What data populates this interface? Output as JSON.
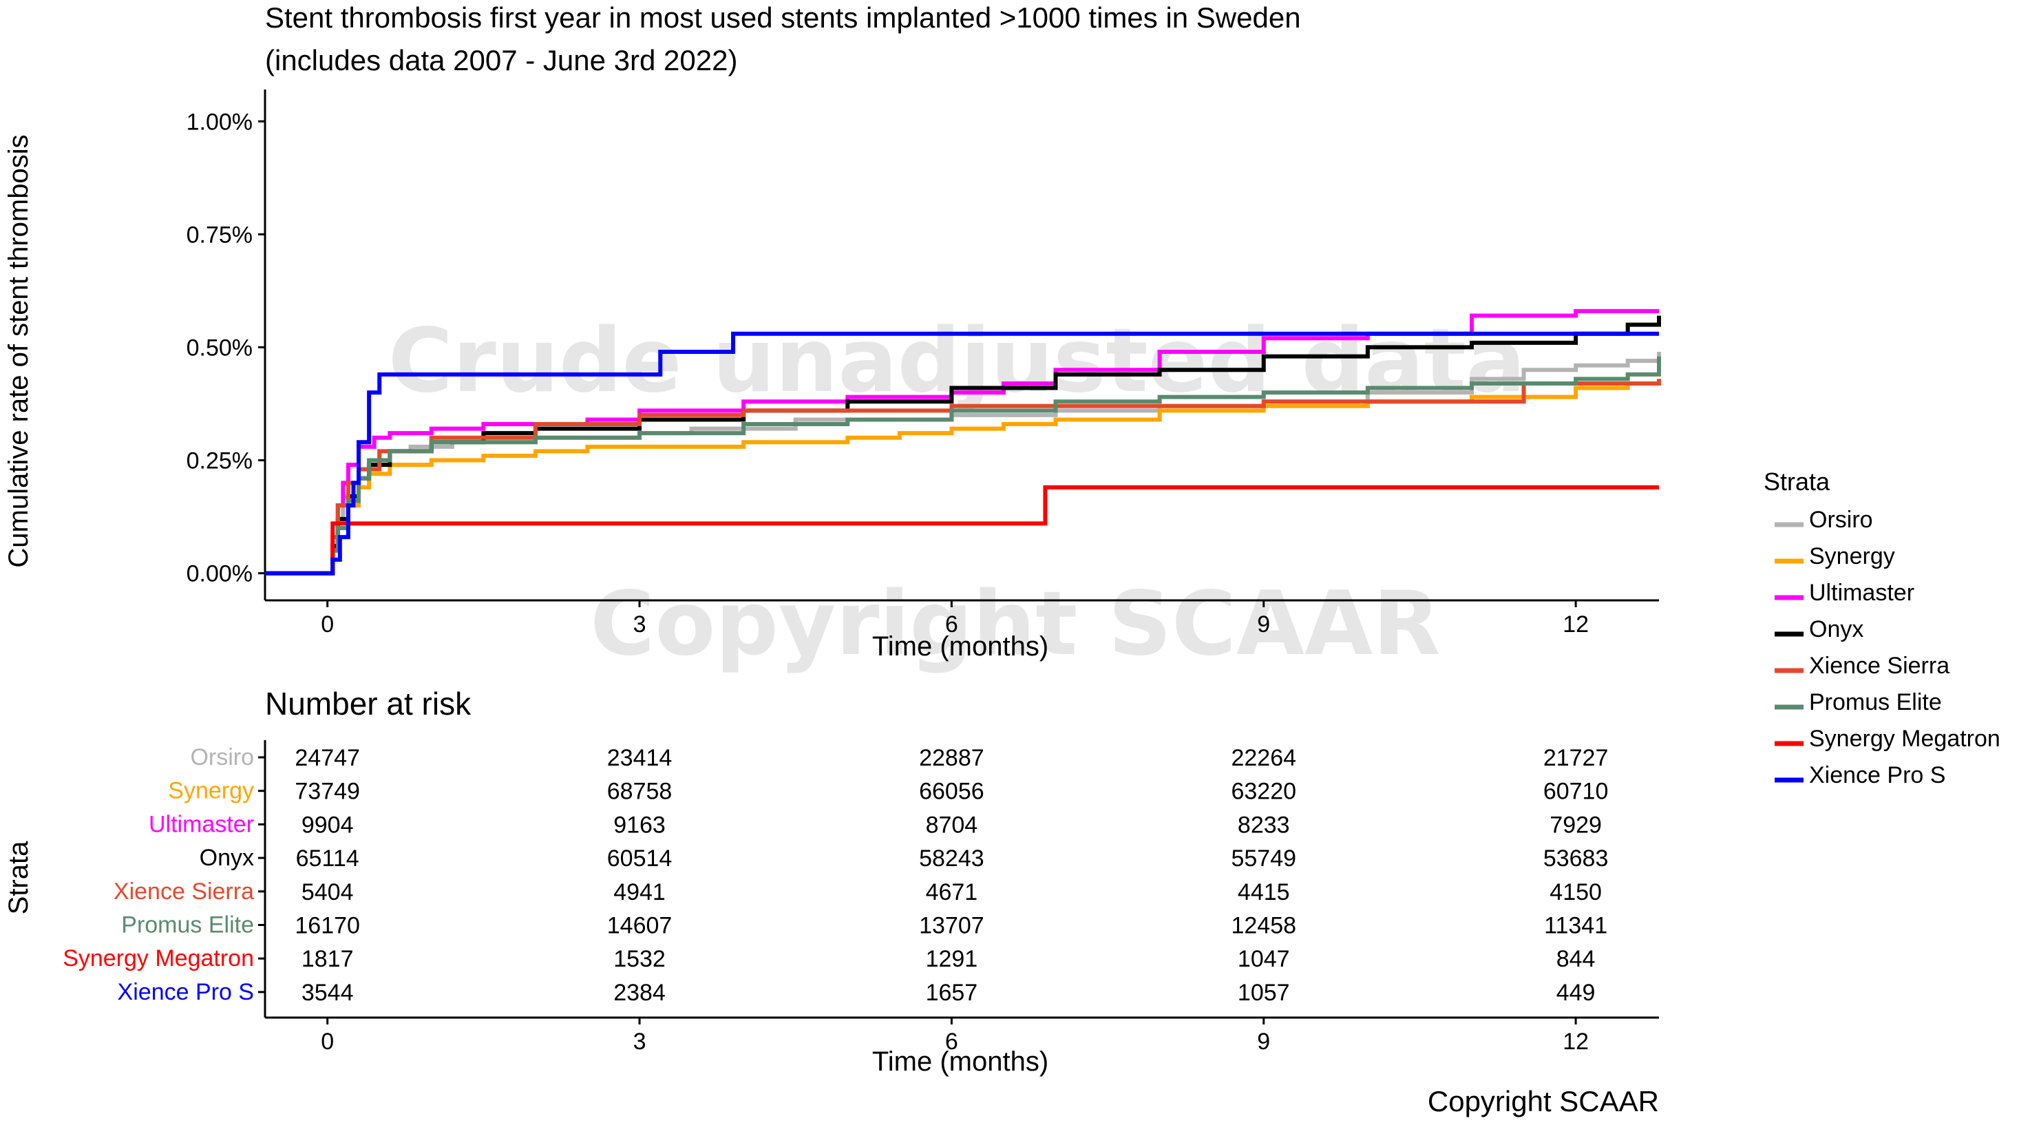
{
  "chart_data": {
    "type": "line",
    "title": "Stent thrombosis first year in most used stents implanted >1000 times in Sweden",
    "subtitle": "(includes data 2007 - June 3rd 2022)",
    "xlabel": "Time (months)",
    "ylabel": "Cumulative rate of stent thrombosis",
    "xlim": [
      -0.6,
      12.8
    ],
    "ylim": [
      -0.06,
      1.04
    ],
    "x_ticks": [
      0,
      3,
      6,
      9,
      12
    ],
    "x_tick_labels": [
      "0",
      "3",
      "6",
      "9",
      "12"
    ],
    "y_ticks": [
      0,
      0.25,
      0.5,
      0.75,
      1.0
    ],
    "y_tick_labels": [
      "0.00%",
      "0.25%",
      "0.50%",
      "0.75%",
      "1.00%"
    ],
    "grid": false,
    "legend_title": "Strata",
    "legend_position": "right",
    "watermarks": [
      "Crude unadjusted data",
      "Copyright SCAAR"
    ],
    "series": [
      {
        "name": "Orsiro",
        "color": "#b3b3b3",
        "x": [
          -0.6,
          0,
          0.05,
          0.1,
          0.15,
          0.2,
          0.3,
          0.4,
          0.5,
          0.8,
          1.2,
          2,
          3,
          3.5,
          4.5,
          6,
          7,
          8,
          9,
          10,
          11,
          11.5,
          12,
          12.5,
          12.8
        ],
        "y": [
          0,
          0,
          0.05,
          0.12,
          0.17,
          0.2,
          0.23,
          0.25,
          0.27,
          0.28,
          0.29,
          0.3,
          0.31,
          0.32,
          0.34,
          0.35,
          0.36,
          0.37,
          0.38,
          0.4,
          0.43,
          0.45,
          0.46,
          0.47,
          0.49
        ]
      },
      {
        "name": "Synergy",
        "color": "#ffa500",
        "x": [
          -0.6,
          0,
          0.05,
          0.1,
          0.2,
          0.3,
          0.4,
          0.6,
          1,
          1.5,
          2,
          2.5,
          3,
          4,
          5,
          5.5,
          6,
          6.5,
          7,
          8,
          9,
          10,
          11,
          12,
          12.5,
          12.8
        ],
        "y": [
          0,
          0,
          0.05,
          0.1,
          0.15,
          0.19,
          0.22,
          0.24,
          0.25,
          0.26,
          0.27,
          0.28,
          0.28,
          0.29,
          0.3,
          0.31,
          0.32,
          0.33,
          0.34,
          0.36,
          0.37,
          0.38,
          0.39,
          0.41,
          0.42,
          0.43
        ]
      },
      {
        "name": "Ultimaster",
        "color": "#ff00ff",
        "x": [
          -0.6,
          0,
          0.05,
          0.1,
          0.15,
          0.2,
          0.3,
          0.45,
          0.6,
          1,
          1.5,
          2.5,
          3,
          4,
          5,
          6,
          6.5,
          7,
          8,
          9,
          10,
          11,
          12,
          12.8
        ],
        "y": [
          0,
          0,
          0.06,
          0.15,
          0.2,
          0.24,
          0.28,
          0.3,
          0.31,
          0.32,
          0.33,
          0.34,
          0.36,
          0.38,
          0.39,
          0.4,
          0.42,
          0.45,
          0.49,
          0.52,
          0.53,
          0.57,
          0.58,
          0.58
        ]
      },
      {
        "name": "Onyx",
        "color": "#000000",
        "x": [
          -0.6,
          0,
          0.05,
          0.1,
          0.2,
          0.3,
          0.4,
          0.6,
          1,
          1.5,
          2,
          3,
          4,
          5,
          6,
          7,
          8,
          9,
          10,
          11,
          12,
          12.5,
          12.8
        ],
        "y": [
          0,
          0,
          0.06,
          0.12,
          0.17,
          0.21,
          0.24,
          0.27,
          0.29,
          0.31,
          0.32,
          0.34,
          0.36,
          0.38,
          0.41,
          0.44,
          0.45,
          0.48,
          0.5,
          0.51,
          0.53,
          0.55,
          0.57
        ]
      },
      {
        "name": "Xience Sierra",
        "color": "#e3492b",
        "x": [
          -0.6,
          0,
          0.05,
          0.1,
          0.2,
          0.3,
          0.5,
          1,
          2,
          3,
          4,
          6,
          7,
          8,
          9,
          10,
          11,
          11.5,
          12,
          12.8
        ],
        "y": [
          0,
          0,
          0.08,
          0.15,
          0.2,
          0.23,
          0.27,
          0.3,
          0.33,
          0.35,
          0.36,
          0.37,
          0.37,
          0.37,
          0.38,
          0.38,
          0.38,
          0.42,
          0.42,
          0.43
        ]
      },
      {
        "name": "Promus Elite",
        "color": "#5a8a6e",
        "x": [
          -0.6,
          0,
          0.05,
          0.1,
          0.2,
          0.3,
          0.4,
          0.6,
          1,
          1.5,
          2,
          3,
          4,
          5,
          6,
          7,
          8,
          9,
          10,
          11,
          12,
          12.5,
          12.8
        ],
        "y": [
          0,
          0,
          0.05,
          0.1,
          0.16,
          0.21,
          0.25,
          0.27,
          0.29,
          0.29,
          0.3,
          0.31,
          0.33,
          0.34,
          0.36,
          0.38,
          0.39,
          0.4,
          0.41,
          0.42,
          0.43,
          0.44,
          0.48
        ]
      },
      {
        "name": "Synergy Megatron",
        "color": "#ff0000",
        "x": [
          -0.6,
          0,
          0.05,
          6.9,
          12.8
        ],
        "y": [
          0,
          0,
          0.11,
          0.19,
          0.19
        ]
      },
      {
        "name": "Xience Pro S",
        "color": "#0000ff",
        "x": [
          -0.6,
          0,
          0.05,
          0.12,
          0.2,
          0.25,
          0.3,
          0.4,
          0.5,
          1.1,
          2.5,
          3.2,
          3.9,
          12,
          12.8
        ],
        "y": [
          0,
          0,
          0.03,
          0.08,
          0.15,
          0.2,
          0.29,
          0.4,
          0.44,
          0.44,
          0.44,
          0.49,
          0.53,
          0.53,
          0.53
        ]
      }
    ],
    "risk_table": {
      "title": "Number at risk",
      "ylabel": "Strata",
      "xlabel": "Time (months)",
      "times": [
        "0",
        "3",
        "6",
        "9",
        "12"
      ],
      "rows": [
        {
          "name": "Orsiro",
          "color": "#b3b3b3",
          "values": [
            "24747",
            "23414",
            "22887",
            "22264",
            "21727"
          ]
        },
        {
          "name": "Synergy",
          "color": "#ffa500",
          "values": [
            "73749",
            "68758",
            "66056",
            "63220",
            "60710"
          ]
        },
        {
          "name": "Ultimaster",
          "color": "#ff00ff",
          "values": [
            "9904",
            "9163",
            "8704",
            "8233",
            "7929"
          ]
        },
        {
          "name": "Onyx",
          "color": "#000000",
          "values": [
            "65114",
            "60514",
            "58243",
            "55749",
            "53683"
          ]
        },
        {
          "name": "Xience Sierra",
          "color": "#e3492b",
          "values": [
            "5404",
            "4941",
            "4671",
            "4415",
            "4150"
          ]
        },
        {
          "name": "Promus Elite",
          "color": "#5a8a6e",
          "values": [
            "16170",
            "14607",
            "13707",
            "12458",
            "11341"
          ]
        },
        {
          "name": "Synergy Megatron",
          "color": "#ff0000",
          "values": [
            "1817",
            "1532",
            "1291",
            "1047",
            "844"
          ]
        },
        {
          "name": "Xience Pro S",
          "color": "#0000ff",
          "values": [
            "3544",
            "2384",
            "1657",
            "1057",
            "449"
          ]
        }
      ]
    }
  },
  "footer": {
    "copyright": "Copyright SCAAR"
  }
}
